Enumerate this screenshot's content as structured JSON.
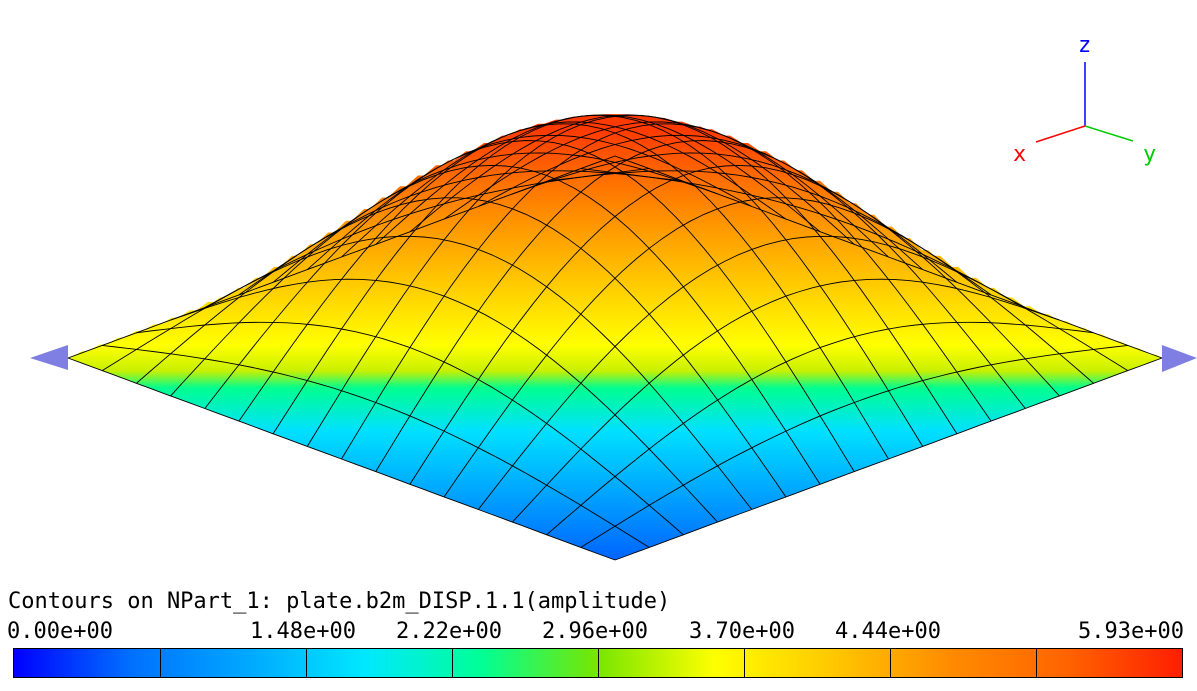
{
  "legend": {
    "title": "Contours on NPart_1: plate.b2m_DISP.1.1(amplitude)",
    "tick_labels": [
      "0.00e+00",
      "1.48e+00",
      "2.22e+00",
      "2.96e+00",
      "3.70e+00",
      "4.44e+00",
      "5.93e+00"
    ],
    "min": 0.0,
    "max": 5.93,
    "divisions": 8,
    "colors": [
      "#0000ff",
      "#0070ff",
      "#00a8ff",
      "#00e8ff",
      "#00ff96",
      "#78e600",
      "#ffff00",
      "#ffc800",
      "#ff8c00",
      "#ff6400",
      "#ff1e00"
    ]
  },
  "triad": {
    "x_label": "x",
    "y_label": "y",
    "z_label": "z",
    "x_color": "#ff0000",
    "y_color": "#00cc00",
    "z_color": "#0000ff"
  },
  "model": {
    "mesh_divisions": 16
  }
}
